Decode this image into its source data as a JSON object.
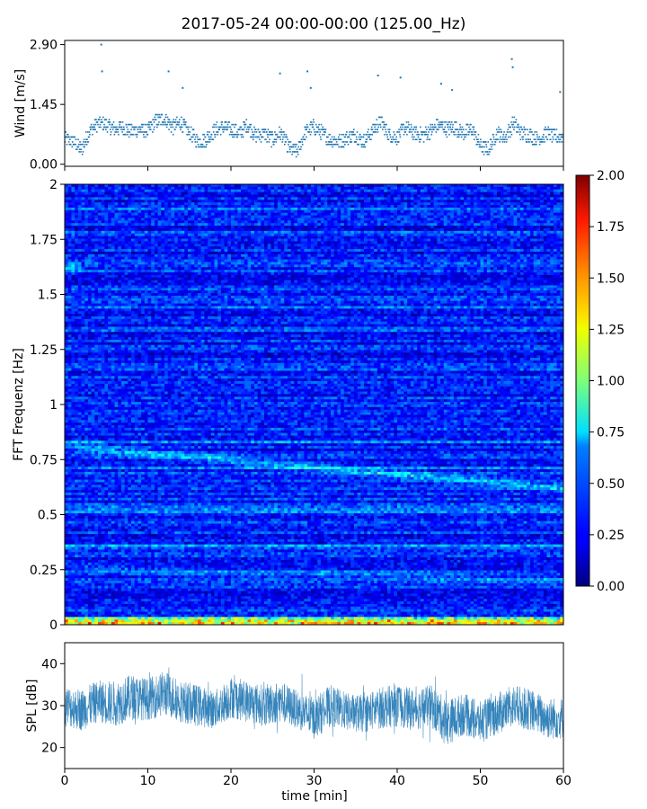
{
  "figure_title": "2017-05-24 00:00-00:00 (125.00_Hz)",
  "colors": {
    "wind": "#1f77b4",
    "spl": "#1f77b4"
  },
  "chart_data": [
    {
      "id": "wind",
      "type": "scatter",
      "title": "",
      "xlabel": "",
      "ylabel": "Wind [m/s]",
      "xlim": [
        0,
        60
      ],
      "ylim": [
        -0.05,
        3.0
      ],
      "yticks": [
        0.0,
        1.45,
        2.9
      ],
      "ytick_labels": [
        "0.00",
        "1.45",
        "2.90"
      ],
      "grid": false,
      "profile_x": [
        0,
        1,
        2,
        3,
        4,
        5,
        6,
        7,
        8,
        9,
        10,
        11,
        12,
        13,
        14,
        15,
        16,
        17,
        18,
        19,
        20,
        21,
        22,
        23,
        24,
        25,
        26,
        27,
        28,
        29,
        30,
        31,
        32,
        33,
        34,
        35,
        36,
        37,
        38,
        39,
        40,
        41,
        42,
        43,
        44,
        45,
        46,
        47,
        48,
        49,
        50,
        51,
        52,
        53,
        54,
        55,
        56,
        57,
        58,
        59,
        60
      ],
      "profile_y": [
        0.6,
        0.55,
        0.35,
        0.8,
        1.0,
        0.95,
        0.85,
        0.9,
        0.8,
        0.85,
        0.8,
        1.05,
        1.1,
        0.9,
        1.0,
        0.75,
        0.55,
        0.6,
        0.8,
        0.9,
        0.85,
        0.75,
        0.95,
        0.7,
        0.75,
        0.6,
        0.75,
        0.4,
        0.3,
        0.8,
        0.9,
        0.75,
        0.6,
        0.55,
        0.65,
        0.7,
        0.55,
        0.8,
        1.05,
        0.7,
        0.65,
        0.9,
        0.75,
        0.7,
        0.8,
        0.95,
        0.85,
        0.9,
        0.75,
        0.85,
        0.45,
        0.35,
        0.75,
        0.65,
        1.0,
        0.75,
        0.7,
        0.6,
        0.75,
        0.65,
        0.7
      ],
      "outliers": [
        [
          4.5,
          2.25
        ],
        [
          4.4,
          2.9
        ],
        [
          12.5,
          2.25
        ],
        [
          14.2,
          1.85
        ],
        [
          25.9,
          2.2
        ],
        [
          29.2,
          2.25
        ],
        [
          29.6,
          1.85
        ],
        [
          37.7,
          2.15
        ],
        [
          40.4,
          2.1
        ],
        [
          45.3,
          1.95
        ],
        [
          46.6,
          1.8
        ],
        [
          53.8,
          2.55
        ],
        [
          53.9,
          2.35
        ],
        [
          59.6,
          1.75
        ]
      ]
    },
    {
      "id": "spectrogram",
      "type": "heatmap",
      "title": "",
      "xlabel": "",
      "ylabel": "FFT Frequenz [Hz]",
      "xlim": [
        0,
        60
      ],
      "ylim": [
        0,
        2
      ],
      "yticks": [
        0,
        0.25,
        0.5,
        0.75,
        1,
        1.25,
        1.5,
        1.75,
        2
      ],
      "ytick_labels": [
        "0",
        "0.25",
        "0.5",
        "0.75",
        "1",
        "1.25",
        "1.5",
        "1.75",
        "2"
      ],
      "colormap": "jet",
      "zlim": [
        0.0,
        2.0
      ],
      "colorbar_ticks": [
        "0.00",
        "0.25",
        "0.50",
        "0.75",
        "1.00",
        "1.25",
        "1.50",
        "1.75",
        "2.00"
      ],
      "background_level": 0.3,
      "bands": [
        {
          "name_hint": "band-main",
          "freq_start": 0.81,
          "freq_end": 0.62,
          "level": 0.7
        },
        {
          "name_hint": "band-0.53",
          "freq_start": 0.53,
          "freq_end": 0.53,
          "level": 0.55
        },
        {
          "name_hint": "band-0.26",
          "freq_start": 0.26,
          "freq_end": 0.2,
          "level": 0.5
        },
        {
          "name_hint": "band-1.62",
          "freq_start": 1.62,
          "freq_end": 1.62,
          "level": 0.7,
          "x_end": 2.0
        },
        {
          "name_hint": "band-low",
          "freq_start": 0.01,
          "freq_end": 0.01,
          "level": 1.3
        }
      ]
    },
    {
      "id": "spl",
      "type": "line",
      "title": "",
      "xlabel": "time [min]",
      "ylabel": "SPL [dB]",
      "xlim": [
        0,
        60
      ],
      "ylim": [
        15,
        45
      ],
      "xticks": [
        0,
        10,
        20,
        30,
        40,
        50,
        60
      ],
      "xtick_labels": [
        "0",
        "10",
        "20",
        "30",
        "40",
        "50",
        "60"
      ],
      "yticks": [
        20,
        30,
        40
      ],
      "ytick_labels": [
        "20",
        "30",
        "40"
      ],
      "grid": false,
      "envelope_x": [
        0,
        2,
        4,
        6,
        8,
        10,
        12,
        14,
        16,
        18,
        20,
        22,
        24,
        26,
        28,
        30,
        32,
        34,
        36,
        38,
        40,
        42,
        44,
        46,
        48,
        50,
        52,
        54,
        56,
        58,
        60
      ],
      "envelope_center": [
        30,
        29,
        31,
        30.5,
        32,
        31.5,
        33,
        31,
        30,
        29,
        32,
        31,
        30,
        31,
        29,
        27,
        30,
        28.5,
        28,
        29.5,
        30,
        29,
        30,
        26,
        28,
        26,
        28,
        30,
        29,
        27,
        27
      ],
      "envelope_halfwidth": [
        5,
        5,
        5,
        5.5,
        5.5,
        5,
        5.5,
        5,
        5,
        4.5,
        5,
        5,
        5,
        5,
        4.5,
        5,
        5,
        4.5,
        4.5,
        5,
        5,
        5,
        5,
        5.5,
        5,
        5,
        5,
        5,
        5,
        5,
        5
      ]
    }
  ]
}
